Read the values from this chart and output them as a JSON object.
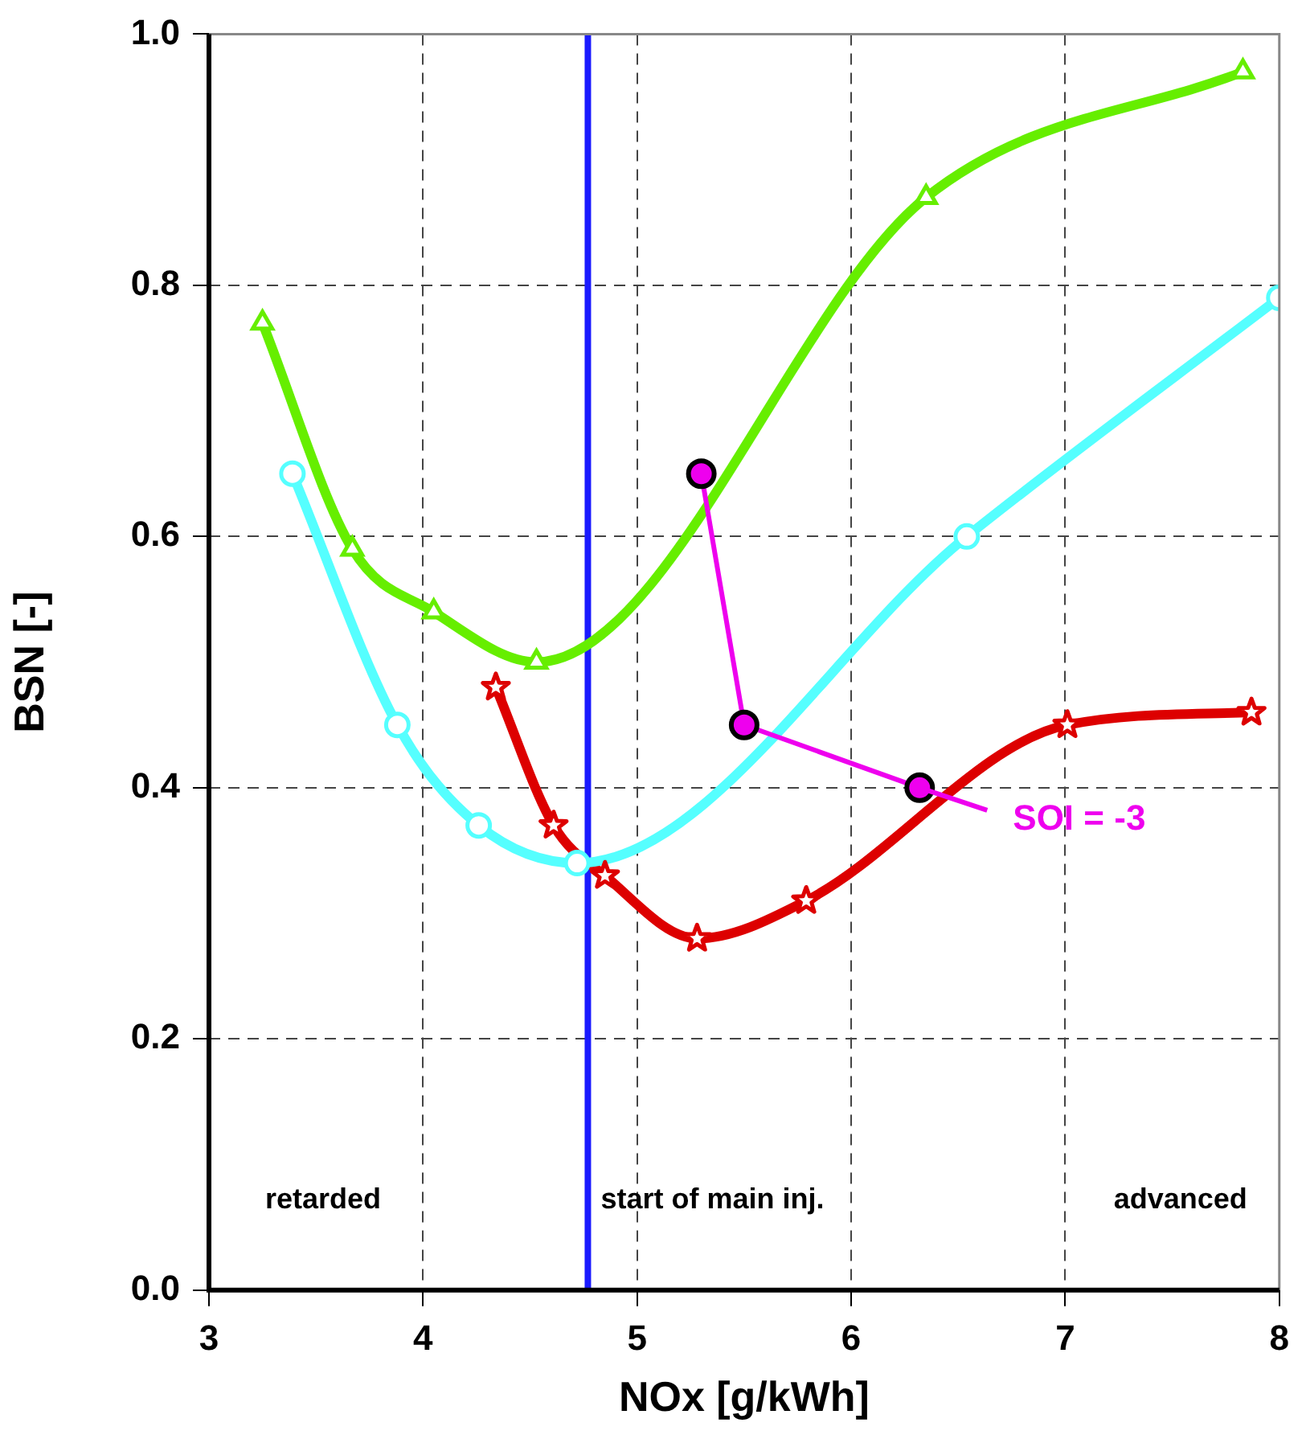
{
  "chart_data": {
    "type": "line",
    "xlabel": "NOx [g/kWh]",
    "ylabel": "BSN [-]",
    "xlim": [
      3,
      8
    ],
    "xticks": [
      3,
      4,
      5,
      6,
      7,
      8
    ],
    "ylim": [
      0,
      1
    ],
    "yticks": [
      {
        "value": 0,
        "label": "0.0"
      },
      {
        "value": 0.2,
        "label": "0.2"
      },
      {
        "value": 0.4,
        "label": "0.4"
      },
      {
        "value": 0.6,
        "label": "0.6"
      },
      {
        "value": 0.8,
        "label": "0.8"
      },
      {
        "value": 1,
        "label": "1.0"
      }
    ],
    "grid": true,
    "legend": false,
    "line_style": "solid",
    "series": [
      {
        "color": "#66ee00",
        "marker": "triangle",
        "x": [
          3.25,
          3.67,
          4.05,
          4.53,
          6.35,
          7.83
        ],
        "values": [
          0.77,
          0.59,
          0.54,
          0.5,
          0.87,
          0.97
        ]
      },
      {
        "color": "#55ffff",
        "marker": "circle",
        "x": [
          3.39,
          3.88,
          4.26,
          4.72,
          6.54,
          8.0
        ],
        "values": [
          0.65,
          0.45,
          0.37,
          0.34,
          0.6,
          0.79
        ]
      },
      {
        "color": "#dd0000",
        "marker": "star",
        "x": [
          4.34,
          4.61,
          4.85,
          5.28,
          5.79,
          7.01,
          7.87
        ],
        "values": [
          0.48,
          0.37,
          0.33,
          0.28,
          0.31,
          0.45,
          0.46
        ]
      },
      {
        "color": "#ee00ee",
        "marker": "circle",
        "x": [
          5.3,
          5.5,
          6.32
        ],
        "values": [
          0.65,
          0.45,
          0.4
        ]
      }
    ],
    "ref_lines": [
      {
        "axis": "x",
        "value": 4.77,
        "color": "#1a1aff"
      }
    ],
    "annotations": [
      {
        "text": "SOI = -3",
        "x": 6.32,
        "y": 0.4
      },
      "retarded",
      "start of main inj.",
      "advanced"
    ]
  }
}
